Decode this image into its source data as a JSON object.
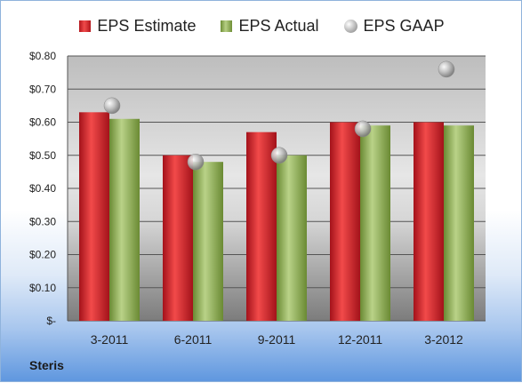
{
  "chart_data": {
    "type": "bar",
    "categories": [
      "3-2011",
      "6-2011",
      "9-2011",
      "12-2011",
      "3-2012"
    ],
    "series": [
      {
        "name": "EPS Estimate",
        "type": "bar",
        "values": [
          0.63,
          0.5,
          0.57,
          0.6,
          0.6
        ],
        "color": "#c0181e"
      },
      {
        "name": "EPS Actual",
        "type": "bar",
        "values": [
          0.61,
          0.48,
          0.5,
          0.59,
          0.59
        ],
        "color": "#8cad4a"
      },
      {
        "name": "EPS GAAP",
        "type": "scatter",
        "values": [
          0.65,
          0.48,
          0.5,
          0.58,
          0.76
        ],
        "color": "#a6a6a6"
      }
    ],
    "ylim": [
      0,
      0.8
    ],
    "yticks": [
      0,
      0.1,
      0.2,
      0.3,
      0.4,
      0.5,
      0.6,
      0.7,
      0.8
    ],
    "ytick_labels": [
      "$-",
      "$0.10",
      "$0.20",
      "$0.30",
      "$0.40",
      "$0.50",
      "$0.60",
      "$0.70",
      "$0.80"
    ],
    "grid": true,
    "legend_position": "top"
  },
  "company": "Steris"
}
